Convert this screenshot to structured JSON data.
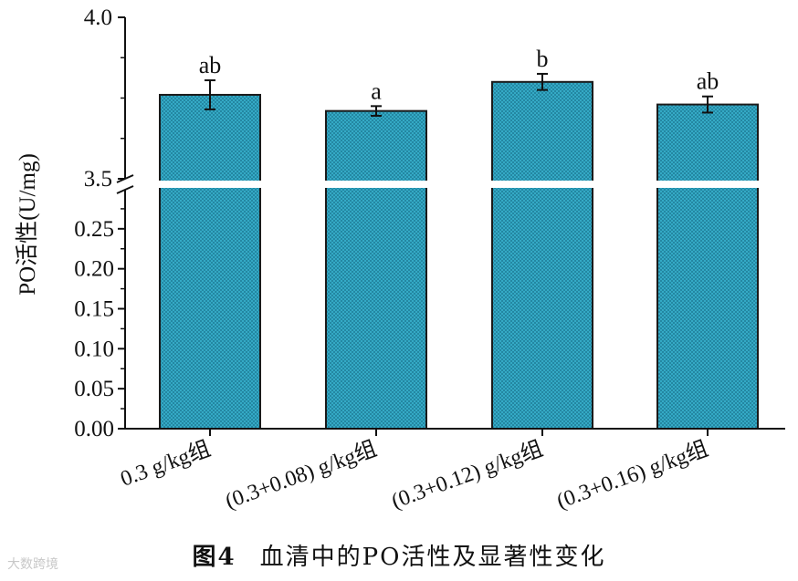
{
  "chart_data": {
    "type": "bar",
    "ylabel": "PO活性(U/mg)",
    "categories": [
      "0.3 g/kg组",
      "(0.3+0.08) g/kg组",
      "(0.3+0.12) g/kg组",
      "(0.3+0.16) g/kg组"
    ],
    "series": [
      {
        "values": [
          3.76,
          3.71,
          3.8,
          3.73
        ],
        "errors": [
          0.045,
          0.015,
          0.025,
          0.025
        ],
        "labels": [
          "ab",
          "a",
          "b",
          "ab"
        ]
      }
    ],
    "axis_break": {
      "lower_range": [
        0,
        0.3
      ],
      "upper_range": [
        3.5,
        4.0
      ]
    },
    "yticks_lower": [
      "0.00",
      "0.05",
      "0.10",
      "0.15",
      "0.20",
      "0.25"
    ],
    "yticks_upper": [
      "3.5",
      "4.0"
    ],
    "bar_color": "#39b3cf",
    "bar_pattern": "crosshatch",
    "grid": false
  },
  "caption": {
    "figure_number": "图4",
    "title": "血清中的PO活性及显著性变化"
  },
  "watermark": "大数跨境"
}
